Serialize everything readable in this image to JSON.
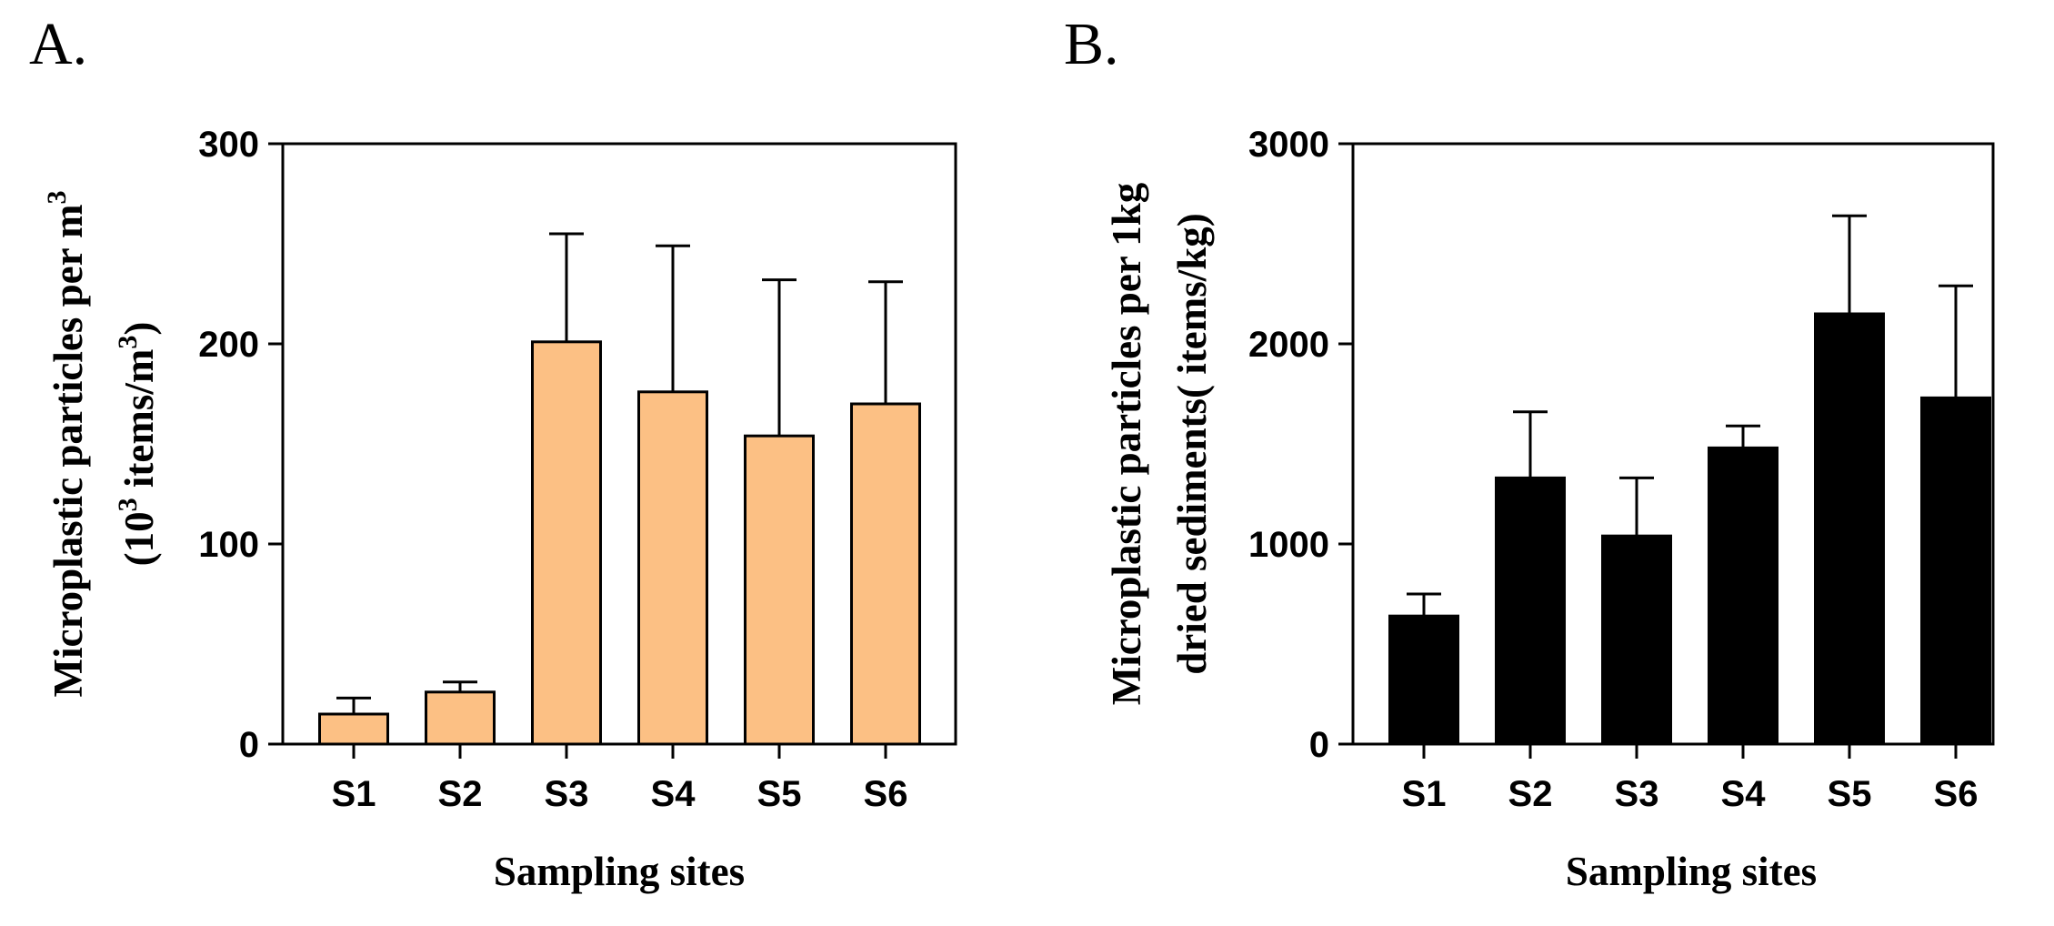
{
  "chart_data": [
    {
      "panel": "A.",
      "type": "bar",
      "categories": [
        "S1",
        "S2",
        "S3",
        "S4",
        "S5",
        "S6"
      ],
      "values": [
        15,
        26,
        201,
        176,
        154,
        170
      ],
      "error_upper": [
        23,
        31,
        255,
        249,
        232,
        231
      ],
      "ylim": [
        0,
        300
      ],
      "yticks": [
        0,
        100,
        200,
        300
      ],
      "xlabel": "Sampling sites",
      "ylabel_line1": "Microplastic particles per m",
      "ylabel_line1_sup": "3",
      "ylabel_line2_a": "(10",
      "ylabel_line2_sup1": "3",
      "ylabel_line2_b": " items/m",
      "ylabel_line2_sup2": "3",
      "ylabel_line2_c": ")",
      "bar_color": "#fcc084",
      "grid": false
    },
    {
      "panel": "B.",
      "type": "bar",
      "categories": [
        "S1",
        "S2",
        "S3",
        "S4",
        "S5",
        "S6"
      ],
      "values": [
        640,
        1330,
        1040,
        1480,
        2150,
        1730
      ],
      "error_upper": [
        750,
        1660,
        1330,
        1590,
        2640,
        2290
      ],
      "ylim": [
        0,
        3000
      ],
      "yticks": [
        0,
        1000,
        2000,
        3000
      ],
      "xlabel": "Sampling sites",
      "ylabel_line1": "Microplastic particles per 1kg",
      "ylabel_line2": "dried sediments( items/kg)",
      "bar_color": "#000000",
      "grid": false
    }
  ]
}
